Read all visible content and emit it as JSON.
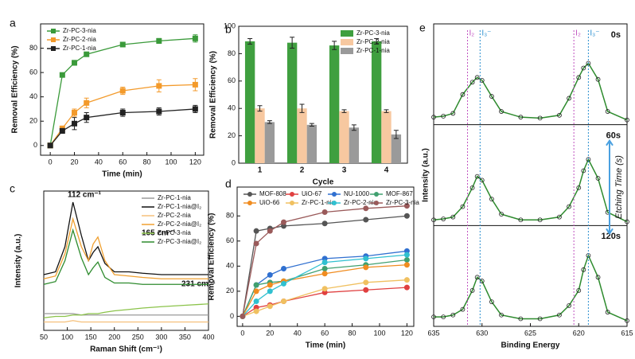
{
  "chart_data": [
    {
      "type": "line",
      "label": "a",
      "xlabel": "Time (min)",
      "ylabel": "Removal Efficiency (%)",
      "x": [
        0,
        10,
        20,
        30,
        60,
        90,
        120
      ],
      "xlim": [
        -8,
        127
      ],
      "xticks": [
        0,
        20,
        40,
        60,
        80,
        100,
        120
      ],
      "ylim": [
        -8,
        100
      ],
      "yticks": [
        0,
        20,
        40,
        60,
        80
      ],
      "marker": "square",
      "legend": "upper left",
      "series": [
        {
          "name": "Zr-PC-3-nia",
          "color": "#3a9a3a",
          "values": [
            0,
            58,
            68,
            75,
            83,
            86,
            88
          ],
          "errors": [
            0,
            1,
            2,
            1,
            1,
            2,
            3
          ]
        },
        {
          "name": "Zr-PC-2-nia",
          "color": "#f39a2b",
          "values": [
            0,
            14,
            27,
            35,
            45,
            49,
            50
          ],
          "errors": [
            0,
            2,
            3,
            4,
            3,
            5,
            5
          ]
        },
        {
          "name": "Zr-PC-1-nia",
          "color": "#222222",
          "values": [
            0,
            12,
            18,
            23,
            27,
            28,
            30
          ],
          "errors": [
            0,
            2,
            5,
            4,
            3,
            3,
            3
          ]
        }
      ]
    },
    {
      "type": "bar",
      "label": "b",
      "xlabel": "Cycle",
      "ylabel": "Removal Efficiency (%)",
      "categories": [
        "1",
        "2",
        "3",
        "4"
      ],
      "ylim": [
        0,
        100
      ],
      "yticks": [
        0,
        20,
        40,
        60,
        80,
        100
      ],
      "legend": "upper right",
      "series": [
        {
          "name": "Zr-PC-3-nia",
          "color": "#3f9f3f",
          "values": [
            89,
            88,
            86,
            89
          ],
          "errors": [
            2,
            4,
            3,
            2
          ]
        },
        {
          "name": "Zr-PC-2-nia",
          "color": "#f7c8a0",
          "values": [
            40,
            40,
            38,
            38
          ],
          "errors": [
            2,
            3,
            1,
            1
          ]
        },
        {
          "name": "Zr-PC-1-nia",
          "color": "#9a9a9a",
          "values": [
            30,
            28,
            26,
            21
          ],
          "errors": [
            1,
            1,
            2,
            3
          ]
        }
      ]
    },
    {
      "type": "line",
      "label": "c",
      "xlabel": "Raman Shift (cm⁻¹)",
      "ylabel": "Intensity (a.u.)",
      "x": [
        50,
        75,
        95,
        112,
        130,
        145,
        155,
        165,
        180,
        200,
        231,
        260,
        300,
        350,
        400
      ],
      "xlim": [
        50,
        400
      ],
      "xticks": [
        50,
        100,
        150,
        200,
        250,
        300,
        350,
        400
      ],
      "ylim": [
        0,
        100
      ],
      "legend": "upper right",
      "annotations": [
        "112 cm⁻¹",
        "165 cm⁻¹",
        "231 cm⁻¹"
      ],
      "series": [
        {
          "name": "Zr-PC-1-nia",
          "color": "#9a9a9a",
          "values": [
            12,
            12,
            12,
            12,
            11,
            11,
            11,
            11,
            11,
            11,
            11,
            11,
            11,
            11,
            11
          ]
        },
        {
          "name": "Zr-PC-1-nia@I₂",
          "color": "#111111",
          "values": [
            40,
            42,
            60,
            92,
            68,
            50,
            56,
            60,
            48,
            42,
            42,
            41,
            40,
            40,
            40
          ]
        },
        {
          "name": "Zr-PC-2-nia",
          "color": "#f5c07a",
          "values": [
            6,
            6,
            6,
            7,
            6,
            6,
            6,
            6,
            6,
            6,
            6,
            6,
            6,
            6,
            6
          ]
        },
        {
          "name": "Zr-PC-2-nia@I₂",
          "color": "#f0a030",
          "values": [
            37,
            39,
            55,
            80,
            60,
            50,
            62,
            67,
            50,
            40,
            39,
            38,
            37,
            37,
            37
          ]
        },
        {
          "name": "Zr-PC-3-nia",
          "color": "#8bc34a",
          "values": [
            9,
            10,
            10,
            11,
            11,
            12,
            12,
            12,
            13,
            14,
            15,
            16,
            17,
            18,
            19
          ]
        },
        {
          "name": "Zr-PC-3-nia@I₂",
          "color": "#2e8b2e",
          "values": [
            33,
            35,
            50,
            72,
            52,
            40,
            45,
            49,
            38,
            34,
            34,
            33,
            33,
            33,
            33
          ]
        }
      ]
    },
    {
      "type": "line",
      "label": "d",
      "xlabel": "Time (min)",
      "ylabel": "Removal Efficiency (%)",
      "x": [
        0,
        10,
        20,
        30,
        60,
        90,
        120
      ],
      "xlim": [
        -4,
        125
      ],
      "xticks": [
        0,
        20,
        40,
        60,
        80,
        100,
        120
      ],
      "ylim": [
        -8,
        103
      ],
      "yticks": [
        0,
        20,
        40,
        60,
        80
      ],
      "marker": "circle",
      "legend": "upper left",
      "legend_columns": 4,
      "series": [
        {
          "name": "MOF-808",
          "color": "#555555",
          "values": [
            0,
            68,
            70,
            72,
            74,
            77,
            80
          ]
        },
        {
          "name": "UiO-67",
          "color": "#e04040",
          "values": [
            0,
            7,
            9,
            12,
            19,
            21,
            23
          ]
        },
        {
          "name": "NU-1000",
          "color": "#3070d0",
          "values": [
            0,
            25,
            33,
            38,
            46,
            48,
            52
          ]
        },
        {
          "name": "MOF-867",
          "color": "#40a070",
          "values": [
            0,
            25,
            27,
            28,
            38,
            41,
            45
          ]
        },
        {
          "name": "UiO-66",
          "color": "#f08c20",
          "values": [
            0,
            20,
            25,
            28,
            34,
            39,
            41
          ]
        },
        {
          "name": "Zr-PC-1-nia",
          "color": "#f0c060",
          "values": [
            0,
            4,
            8,
            12,
            22,
            27,
            29
          ]
        },
        {
          "name": "Zr-PC-2-nia",
          "color": "#30c0d0",
          "values": [
            0,
            12,
            20,
            26,
            43,
            46,
            49
          ]
        },
        {
          "name": "Zr-PC-3-nia",
          "color": "#9a5a5a",
          "values": [
            0,
            58,
            68,
            75,
            83,
            86,
            88
          ]
        }
      ]
    },
    {
      "type": "spectra",
      "label": "e",
      "xlabel": "Binding Energy",
      "ylabel": "Intensity (a.u.)",
      "xlim": [
        635,
        615
      ],
      "xticks": [
        635,
        630,
        625,
        620,
        615
      ],
      "ylim": [
        0,
        100
      ],
      "color": "#2e8b2e",
      "x": [
        635,
        634,
        633,
        632,
        631,
        630.5,
        630,
        629,
        628,
        626,
        624,
        622,
        621,
        620,
        619.5,
        619,
        618,
        617,
        615
      ],
      "panels": [
        {
          "title": "0s",
          "values": [
            8,
            9,
            12,
            32,
            45,
            50,
            47,
            30,
            14,
            8,
            7,
            10,
            28,
            50,
            60,
            65,
            48,
            14,
            5
          ]
        },
        {
          "title": "60s",
          "values": [
            6,
            7,
            9,
            20,
            40,
            52,
            48,
            28,
            12,
            6,
            6,
            9,
            20,
            40,
            58,
            70,
            50,
            14,
            4
          ]
        },
        {
          "title": "120s",
          "values": [
            10,
            10,
            12,
            18,
            38,
            52,
            48,
            26,
            12,
            8,
            8,
            12,
            22,
            38,
            60,
            75,
            52,
            15,
            6
          ]
        }
      ],
      "markers": [
        {
          "label": "I₂",
          "x": 631.5,
          "color": "#c050c0"
        },
        {
          "label": "I₃⁻",
          "x": 630.2,
          "color": "#2a8fd0"
        },
        {
          "label": "I₂",
          "x": 620.5,
          "color": "#c050c0"
        },
        {
          "label": "I₃⁻",
          "x": 619.0,
          "color": "#2a8fd0"
        }
      ],
      "arrow_label": "Etching Time (s)"
    }
  ]
}
